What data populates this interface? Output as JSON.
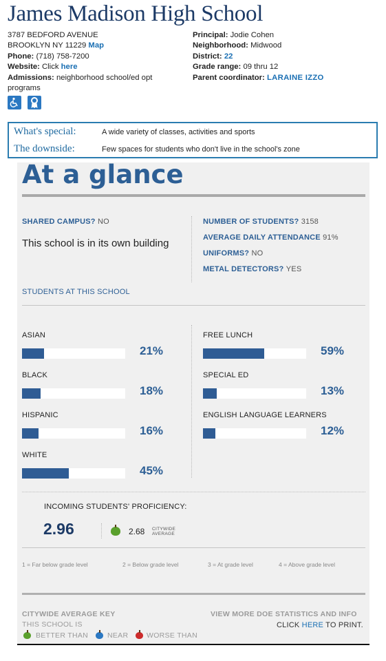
{
  "school": {
    "name": "James Madison High School",
    "address_line1": "3787 BEDFORD AVENUE",
    "address_line2": "BROOKLYN NY 11229",
    "map_link": "Map",
    "phone_label": "Phone:",
    "phone": "(718) 758-7200",
    "website_label": "Website:",
    "website_prefix": "Click",
    "website_link": "here",
    "admissions_label": "Admissions:",
    "admissions": "neighborhood school/ed opt programs",
    "principal_label": "Principal:",
    "principal": "Jodie Cohen",
    "neighborhood_label": "Neighborhood:",
    "neighborhood": "Midwood",
    "district_label": "District:",
    "district": "22",
    "grade_range_label": "Grade range:",
    "grade_range": "09 thru 12",
    "coordinator_label": "Parent coordinator:",
    "coordinator": "LARAINE IZZO",
    "accessibility_icons": [
      "wheelchair-access-icon",
      "award-ribbon-icon"
    ]
  },
  "special": {
    "special_label": "What's special:",
    "special_text": "A wide variety of classes, activities and sports",
    "downside_label": "The downside:",
    "downside_text": "Few spaces for students who don't live in the school's zone"
  },
  "glance": {
    "title": "At a glance",
    "shared_campus_label": "SHARED CAMPUS?",
    "shared_campus": "NO",
    "campus_note": "This school is in its own building",
    "students_label": "NUMBER OF STUDENTS?",
    "students": "3158",
    "attendance_label": "AVERAGE DAILY ATTENDANCE",
    "attendance": "91%",
    "uniforms_label": "UNIFORMS?",
    "uniforms": "NO",
    "metal_label": "METAL DETECTORS?",
    "metal": "YES",
    "students_at_school": "STUDENTS AT THIS SCHOOL"
  },
  "demographics": {
    "left": [
      {
        "label": "ASIAN",
        "pct_text": "21%",
        "value": 21
      },
      {
        "label": "BLACK",
        "pct_text": "18%",
        "value": 18
      },
      {
        "label": "HISPANIC",
        "pct_text": "16%",
        "value": 16
      },
      {
        "label": "WHITE",
        "pct_text": "45%",
        "value": 45
      }
    ],
    "right": [
      {
        "label": "FREE LUNCH",
        "pct_text": "59%",
        "value": 59
      },
      {
        "label": "SPECIAL ED",
        "pct_text": "13%",
        "value": 13
      },
      {
        "label": "ENGLISH LANGUAGE LEARNERS",
        "pct_text": "12%",
        "value": 12
      }
    ]
  },
  "proficiency": {
    "label": "INCOMING STUDENTS' PROFICIENCY:",
    "value": "2.96",
    "citywide_value": "2.68",
    "citywide_caption_1": "CITYWIDE",
    "citywide_caption_2": "AVERAGE",
    "scale": [
      "1 = Far below grade level",
      "2 = Below grade level",
      "3 = At grade level",
      "4 = Above grade level"
    ]
  },
  "key": {
    "title": "CITYWIDE AVERAGE KEY",
    "subtitle": "THIS SCHOOL IS",
    "better": "BETTER THAN",
    "near": "NEAR",
    "worse": "WORSE THAN",
    "more_info": "VIEW MORE DOE STATISTICS AND INFO",
    "print_prefix": "CLICK",
    "print_link": "HERE",
    "print_suffix": "TO PRINT."
  },
  "colors": {
    "title_blue": "#1c3a66",
    "accent_blue": "#2d5f95",
    "bar_fill": "#2f5c94",
    "link_blue": "#1a6fb3",
    "box_border": "#2a7cb0",
    "apple_green": "#5aa02c",
    "apple_blue": "#2b78c2",
    "apple_red": "#cc2b2b"
  }
}
